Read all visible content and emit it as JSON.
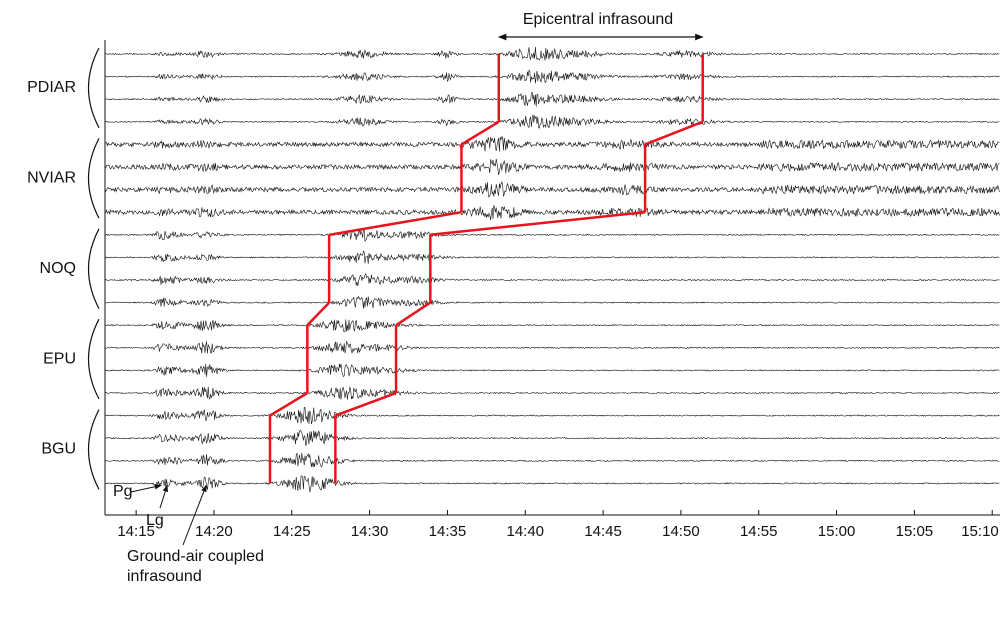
{
  "chart_data": {
    "type": "record-section",
    "stations": [
      "PDIAR",
      "NVIAR",
      "NOQ",
      "EPU",
      "BGU"
    ],
    "xlim": [
      853,
      910.5
    ],
    "xticks": [
      {
        "value": 855,
        "label": "14:15"
      },
      {
        "value": 860,
        "label": "14:20"
      },
      {
        "value": 865,
        "label": "14:25"
      },
      {
        "value": 870,
        "label": "14:30"
      },
      {
        "value": 875,
        "label": "14:35"
      },
      {
        "value": 880,
        "label": "14:40"
      },
      {
        "value": 885,
        "label": "14:45"
      },
      {
        "value": 890,
        "label": "14:50"
      },
      {
        "value": 895,
        "label": "14:55"
      },
      {
        "value": 900,
        "label": "15:00"
      },
      {
        "value": 905,
        "label": "15:05"
      },
      {
        "value": 910,
        "label": "15:10"
      }
    ],
    "series": [
      {
        "color": "#e8141c",
        "values": [
          878.3,
          875.9,
          867.4,
          866.0,
          863.6
        ]
      },
      {
        "color": "#e8141c",
        "values": [
          891.4,
          887.7,
          873.9,
          871.7,
          867.8
        ]
      }
    ],
    "annotations": {
      "span_label": "Epicentral infrasound",
      "phases": [
        {
          "label": [
            "Pg"
          ],
          "x": 856.6
        },
        {
          "label": [
            "Lg"
          ],
          "x": 857.0
        },
        {
          "label": [
            "Ground-air coupled",
            "infrasound"
          ],
          "x": 859.5
        }
      ]
    }
  }
}
